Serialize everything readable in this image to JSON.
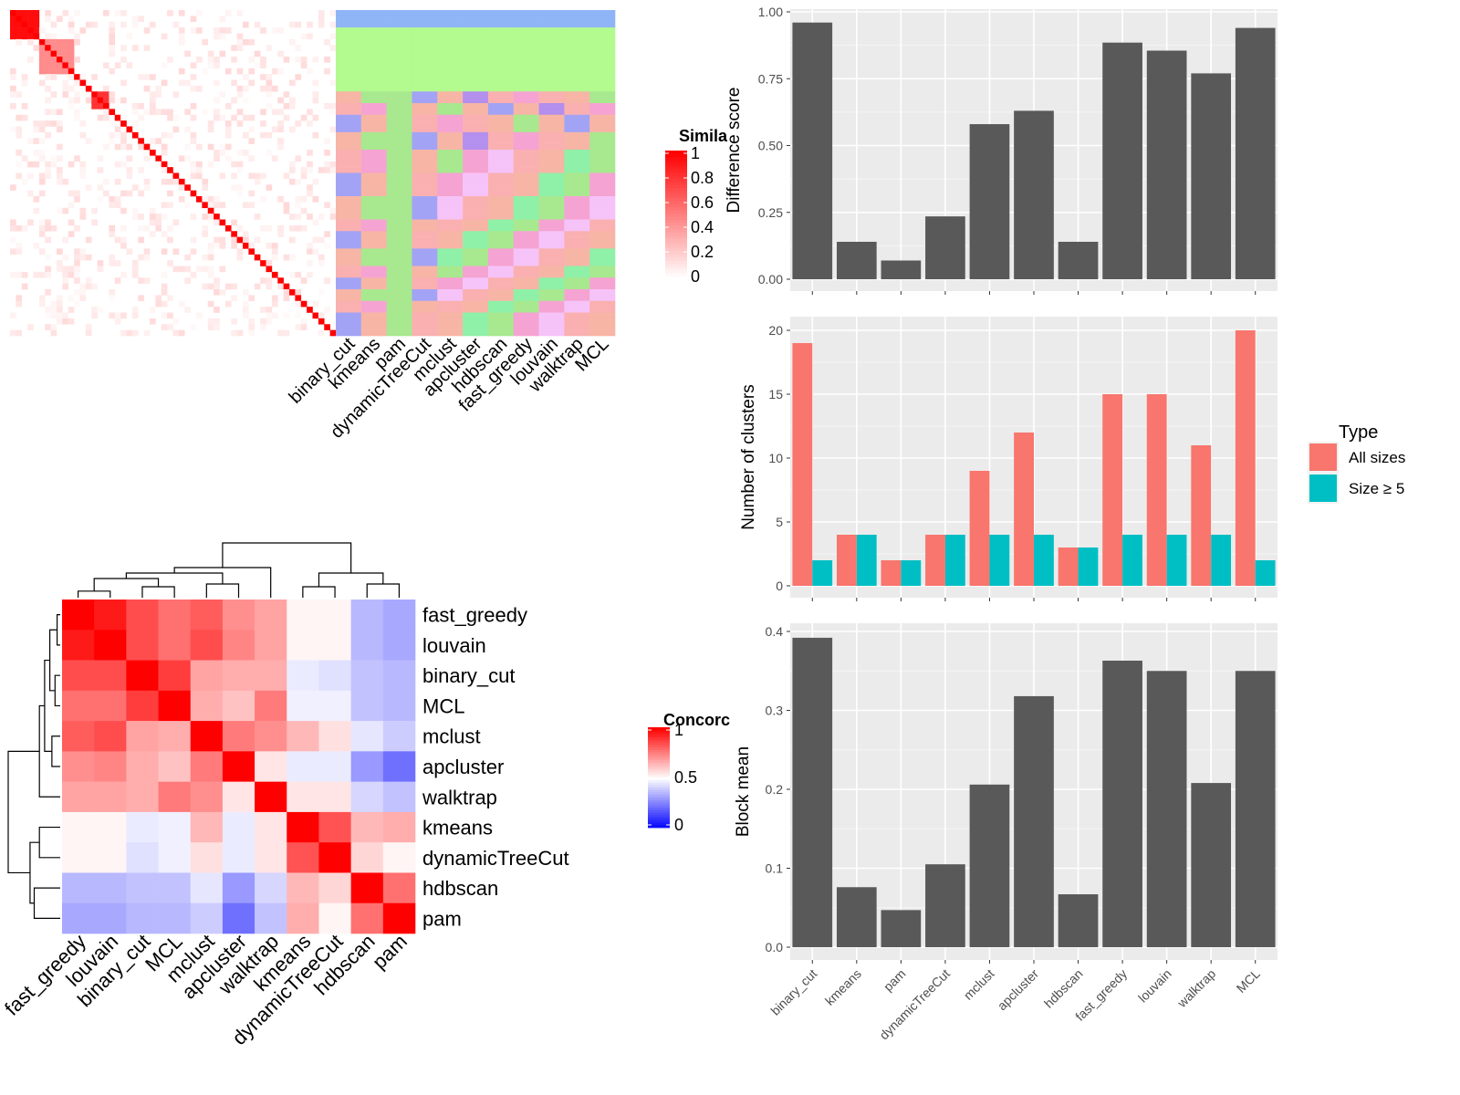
{
  "chart_data": [
    {
      "type": "heatmap",
      "legend_title": "Simila",
      "legend_ticks": [
        "1",
        "0.8",
        "0.6",
        "0.4",
        "0.2",
        "0"
      ],
      "scale": {
        "low": "#ffffff",
        "high": "#ff0000",
        "range": [
          0,
          1
        ]
      },
      "matrix_size": 56,
      "diagonal": 1,
      "blocks": [
        {
          "rows": [
            0,
            4
          ],
          "value": 0.95
        },
        {
          "rows": [
            5,
            10
          ],
          "value": 0.45
        },
        {
          "rows": [
            14,
            16
          ],
          "value": 0.8
        }
      ],
      "annotation_columns": [
        "binary_cut",
        "kmeans",
        "pam",
        "dynamicTreeCut",
        "mclust",
        "apcluster",
        "hdbscan",
        "fast_greedy",
        "louvain",
        "walktrap",
        "MCL"
      ],
      "annotation_colors": [
        "#8fb5f7",
        "#b3fa8f",
        "#f7b5a6",
        "#fab0b0",
        "#b38fee",
        "#f5a3d2",
        "#f6c3f8",
        "#8ff0a8",
        "#f5f58f",
        "#a8e88f",
        "#a3a3f5"
      ]
    },
    {
      "type": "heatmap",
      "legend_title": "Concorc",
      "legend_ticks": [
        "1",
        "0.5",
        "0"
      ],
      "scale": {
        "low": "#0000ff",
        "mid": "#ffffff",
        "high": "#ff0000",
        "range": [
          0,
          1
        ]
      },
      "rows": [
        "fast_greedy",
        "louvain",
        "binary_cut",
        "MCL",
        "mclust",
        "apcluster",
        "walktrap",
        "kmeans",
        "dynamicTreeCut",
        "hdbscan",
        "pam"
      ],
      "cols": [
        "fast_greedy",
        "louvain",
        "binary_cut",
        "MCL",
        "mclust",
        "apcluster",
        "walktrap",
        "kmeans",
        "dynamicTreeCut",
        "hdbscan",
        "pam"
      ],
      "values": [
        [
          1.0,
          0.95,
          0.85,
          0.78,
          0.82,
          0.72,
          0.68,
          0.52,
          0.52,
          0.36,
          0.33
        ],
        [
          0.95,
          1.0,
          0.85,
          0.78,
          0.85,
          0.74,
          0.68,
          0.52,
          0.52,
          0.36,
          0.33
        ],
        [
          0.85,
          0.85,
          1.0,
          0.88,
          0.68,
          0.66,
          0.66,
          0.46,
          0.44,
          0.38,
          0.36
        ],
        [
          0.78,
          0.78,
          0.88,
          1.0,
          0.66,
          0.62,
          0.76,
          0.47,
          0.47,
          0.38,
          0.36
        ],
        [
          0.82,
          0.85,
          0.68,
          0.66,
          1.0,
          0.76,
          0.72,
          0.64,
          0.56,
          0.45,
          0.4
        ],
        [
          0.72,
          0.74,
          0.66,
          0.62,
          0.76,
          1.0,
          0.55,
          0.46,
          0.46,
          0.3,
          0.22
        ],
        [
          0.68,
          0.68,
          0.66,
          0.76,
          0.72,
          0.55,
          1.0,
          0.55,
          0.55,
          0.42,
          0.38
        ],
        [
          0.52,
          0.52,
          0.46,
          0.47,
          0.64,
          0.46,
          0.55,
          1.0,
          0.84,
          0.64,
          0.66
        ],
        [
          0.52,
          0.52,
          0.44,
          0.47,
          0.56,
          0.46,
          0.55,
          0.84,
          1.0,
          0.58,
          0.52
        ],
        [
          0.36,
          0.36,
          0.38,
          0.38,
          0.45,
          0.3,
          0.42,
          0.64,
          0.58,
          1.0,
          0.78
        ],
        [
          0.33,
          0.33,
          0.36,
          0.36,
          0.4,
          0.22,
          0.38,
          0.66,
          0.52,
          0.78,
          1.0
        ]
      ]
    },
    {
      "type": "bar",
      "categories": [
        "binary_cut",
        "kmeans",
        "pam",
        "dynamicTreeCut",
        "mclust",
        "apcluster",
        "hdbscan",
        "fast_greedy",
        "louvain",
        "walktrap",
        "MCL"
      ],
      "values": [
        0.96,
        0.14,
        0.07,
        0.235,
        0.58,
        0.63,
        0.14,
        0.885,
        0.855,
        0.77,
        0.94
      ],
      "ylabel": "Difference score",
      "ylim": [
        0,
        1.0
      ],
      "yticks": [
        "0.00",
        "0.25",
        "0.50",
        "0.75",
        "1.00"
      ],
      "color": "#595959",
      "grid": true
    },
    {
      "type": "bar",
      "categories": [
        "binary_cut",
        "kmeans",
        "pam",
        "dynamicTreeCut",
        "mclust",
        "apcluster",
        "hdbscan",
        "fast_greedy",
        "louvain",
        "walktrap",
        "MCL"
      ],
      "series": [
        {
          "name": "All sizes",
          "values": [
            19,
            4,
            2,
            4,
            9,
            12,
            3,
            15,
            15,
            11,
            20
          ],
          "color": "#f8766d"
        },
        {
          "name": "Size ≥ 5",
          "values": [
            2,
            4,
            2,
            4,
            4,
            4,
            3,
            4,
            4,
            4,
            2
          ],
          "color": "#00bfc4"
        }
      ],
      "ylabel": "Number of clusters",
      "ylim": [
        0,
        20.5
      ],
      "yticks": [
        "0",
        "5",
        "10",
        "15",
        "20"
      ],
      "legend_title": "Type",
      "legend_position": "right",
      "grid": true
    },
    {
      "type": "bar",
      "categories": [
        "binary_cut",
        "kmeans",
        "pam",
        "dynamicTreeCut",
        "mclust",
        "apcluster",
        "hdbscan",
        "fast_greedy",
        "louvain",
        "walktrap",
        "MCL"
      ],
      "values": [
        0.392,
        0.076,
        0.047,
        0.105,
        0.206,
        0.318,
        0.067,
        0.363,
        0.35,
        0.208,
        0.35
      ],
      "ylabel": "Block mean",
      "ylim": [
        0,
        0.4
      ],
      "yticks": [
        "0.0",
        "0.1",
        "0.2",
        "0.3",
        "0.4"
      ],
      "color": "#595959",
      "grid": true
    }
  ]
}
